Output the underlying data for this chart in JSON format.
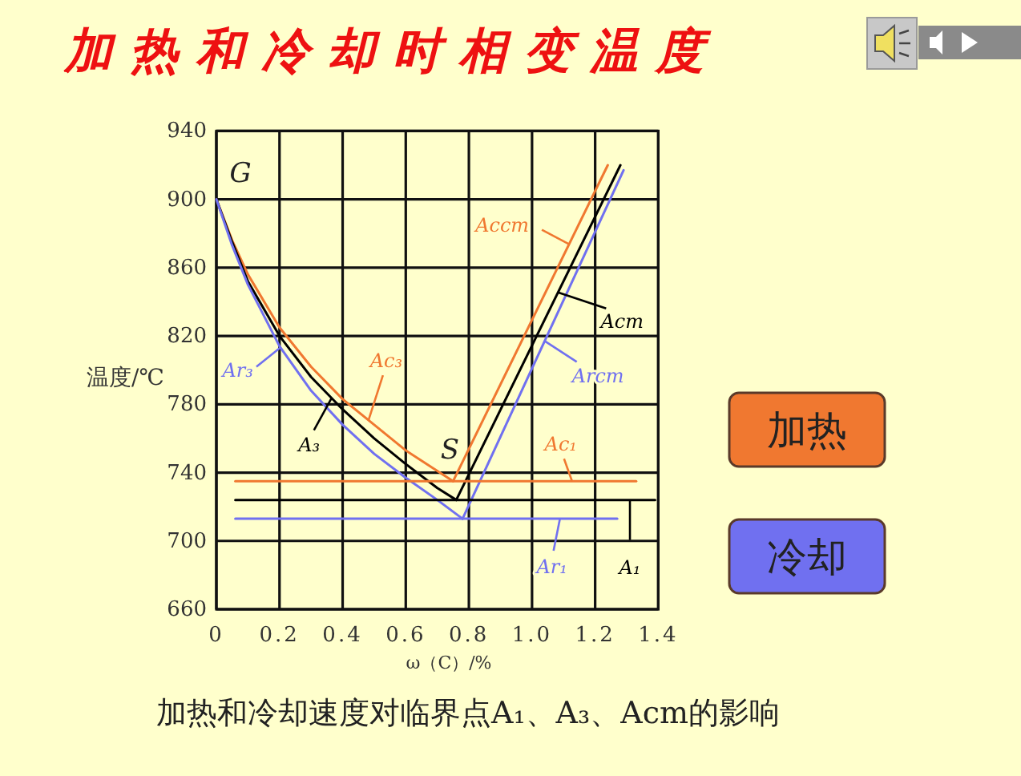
{
  "chart_data": {
    "type": "line",
    "title": "加热和冷却时相变温度",
    "xlabel": "ω（C）/%",
    "ylabel": "温度/℃",
    "xlim": [
      0,
      1.4
    ],
    "ylim": [
      660,
      940
    ],
    "xticks": [
      0,
      0.2,
      0.4,
      0.6,
      0.8,
      {
        "value": 1,
        "label": "1.0"
      },
      1.2,
      1.4
    ],
    "yticks": [
      660,
      700,
      740,
      780,
      820,
      860,
      900,
      940
    ],
    "grid": true,
    "legend": "right",
    "series": [
      {
        "name": "Ac₃",
        "color": "#f07830",
        "x": [
          0,
          0.05,
          0.1,
          0.2,
          0.3,
          0.4,
          0.5,
          0.6,
          0.7,
          0.75
        ],
        "values": [
          900,
          876,
          856,
          825,
          802,
          783,
          768,
          753,
          741,
          735
        ]
      },
      {
        "name": "A₃",
        "color": "#000000",
        "x": [
          0,
          0.05,
          0.1,
          0.2,
          0.3,
          0.4,
          0.5,
          0.6,
          0.7,
          0.76
        ],
        "values": [
          900,
          875,
          852,
          820,
          796,
          777,
          760,
          745,
          731,
          724
        ]
      },
      {
        "name": "Ar₃",
        "color": "#7070f0",
        "x": [
          0,
          0.05,
          0.1,
          0.2,
          0.3,
          0.4,
          0.5,
          0.6,
          0.7,
          0.78
        ],
        "values": [
          900,
          873,
          850,
          814,
          788,
          768,
          751,
          737,
          724,
          713
        ]
      },
      {
        "name": "Accm",
        "color": "#f07830",
        "x": [
          0.75,
          1.24
        ],
        "values": [
          735,
          920
        ]
      },
      {
        "name": "Acm",
        "color": "#000000",
        "x": [
          0.76,
          1.28
        ],
        "values": [
          724,
          920
        ]
      },
      {
        "name": "Arcm",
        "color": "#7070f0",
        "x": [
          0.78,
          1.29
        ],
        "values": [
          713,
          917
        ]
      },
      {
        "name": "Ac₁",
        "color": "#f07830",
        "x": [
          0.06,
          1.33
        ],
        "values": [
          735,
          735
        ]
      },
      {
        "name": "A₁",
        "color": "#000000",
        "x": [
          0.06,
          1.39
        ],
        "values": [
          724,
          724
        ]
      },
      {
        "name": "Ar₁",
        "color": "#7070f0",
        "x": [
          0.06,
          1.27
        ],
        "values": [
          713,
          713
        ]
      }
    ],
    "annotations": [
      {
        "text": "G",
        "x": 0,
        "y": 900
      },
      {
        "text": "S",
        "x": 0.76,
        "y": 724
      },
      "加热",
      "冷却",
      "加热和冷却速度对临界点A₁、A₃、Acm的影响"
    ]
  }
}
